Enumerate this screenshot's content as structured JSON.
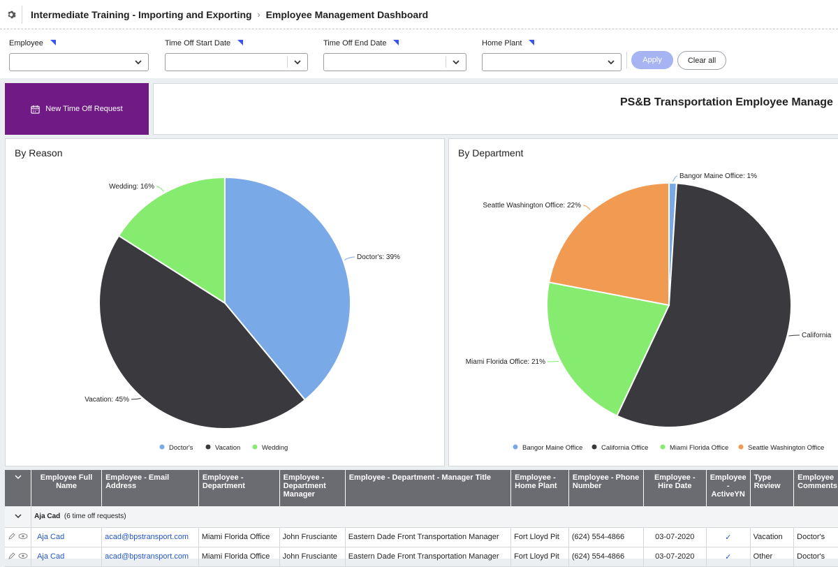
{
  "breadcrumb": {
    "app": "Intermediate Training - Importing and Exporting",
    "page": "Employee Management Dashboard"
  },
  "filters": [
    {
      "label": "Employee",
      "value": ""
    },
    {
      "label": "Time Off Start Date",
      "value": ""
    },
    {
      "label": "Time Off End Date",
      "value": ""
    },
    {
      "label": "Home Plant",
      "value": ""
    }
  ],
  "buttons": {
    "apply": "Apply",
    "clear": "Clear all",
    "new_request": "New Time Off Request"
  },
  "banner_title": "PS&B Transportation Employee Manage",
  "chart_data": [
    {
      "type": "pie",
      "title": "By Reason",
      "categories": [
        "Doctor's",
        "Vacation",
        "Wedding"
      ],
      "values": [
        39,
        45,
        16
      ],
      "labels": [
        "Doctor's: 39%",
        "Vacation: 45%",
        "Wedding: 16%"
      ],
      "colors": [
        "#7aa9e8",
        "#3a393e",
        "#86ec6f"
      ],
      "legend": "bottom"
    },
    {
      "type": "pie",
      "title": "By Department",
      "categories": [
        "Bangor Maine Office",
        "California Office",
        "Miami Florida Office",
        "Seattle Washington Office"
      ],
      "values": [
        1,
        56,
        21,
        22
      ],
      "labels": [
        "Bangor Maine Office: 1%",
        "California",
        "Miami Florida Office: 21%",
        "Seattle Washington Office: 22%"
      ],
      "colors": [
        "#7aa9e8",
        "#3a393e",
        "#86ec6f",
        "#f09a52"
      ],
      "legend": "bottom"
    }
  ],
  "grid": {
    "headers": [
      "Employee Full Name",
      "Employee - Email Address",
      "Employee - Department",
      "Employee - Department Manager",
      "Employee - Department - Manager Title",
      "Employee - Home Plant",
      "Employee - Phone Number",
      "Employee - Hire Date",
      "Employee - ActiveYN",
      "Type Review",
      "Employee Comments"
    ],
    "group": {
      "name": "Aja Cad",
      "count": "(6 time off requests)"
    },
    "rows": [
      [
        "Aja Cad",
        "acad@bpstransport.com",
        "Miami Florida Office",
        "John Frusciante",
        "Eastern Dade Front Transportation Manager",
        "Fort Lloyd Pit",
        "(624) 554-4866",
        "03-07-2020",
        "✓",
        "Vacation",
        "Doctor's"
      ],
      [
        "Aja Cad",
        "acad@bpstransport.com",
        "Miami Florida Office",
        "John Frusciante",
        "Eastern Dade Front Transportation Manager",
        "Fort Lloyd Pit",
        "(624) 554-4866",
        "03-07-2020",
        "✓",
        "Other",
        "Doctor's"
      ]
    ]
  }
}
